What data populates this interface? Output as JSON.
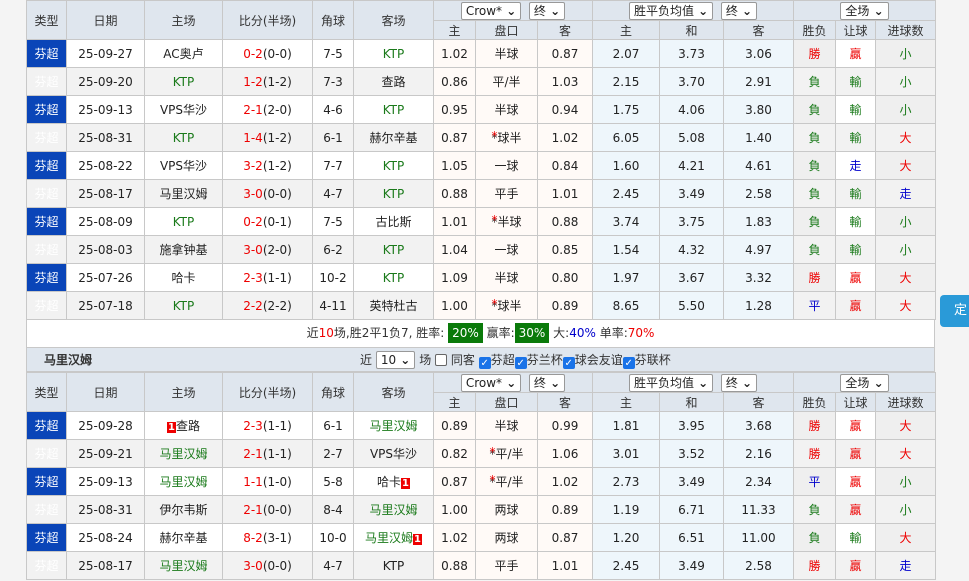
{
  "headers": {
    "type": "类型",
    "date": "日期",
    "home": "主场",
    "score": "比分(半场)",
    "corner": "角球",
    "away": "客场",
    "o_home": "主",
    "handicap": "盘口",
    "o_away": "客",
    "e_home": "主",
    "e_draw": "和",
    "e_away": "客",
    "wl": "胜负",
    "ah": "让球",
    "goals": "进球数"
  },
  "selects": {
    "company": "Crow*",
    "final1": "终",
    "avg": "胜平负均值",
    "final2": "终",
    "scope": "全场"
  },
  "colors": {
    "type_bg": "#0a45b8",
    "focus_team": "#1a7a1a",
    "win": "#e00",
    "lose": "#1a7a1a",
    "draw": "#00c"
  },
  "table1": {
    "focus": "KTP",
    "rows": [
      [
        "芬超",
        "25-09-27",
        "AC奥卢",
        "KTP",
        "0-2",
        "(0-0)",
        "7-5",
        "1.02",
        "半球",
        "0.87",
        "2.07",
        "3.73",
        "3.06",
        "勝",
        "贏",
        "小"
      ],
      [
        "芬超",
        "25-09-20",
        "KTP",
        "查路",
        "1-2",
        "(1-2)",
        "7-3",
        "0.86",
        "平/半",
        "1.03",
        "2.15",
        "3.70",
        "2.91",
        "負",
        "輸",
        "小"
      ],
      [
        "芬超",
        "25-09-13",
        "VPS华沙",
        "KTP",
        "2-1",
        "(2-0)",
        "4-6",
        "0.95",
        "半球",
        "0.94",
        "1.75",
        "4.06",
        "3.80",
        "負",
        "輸",
        "小"
      ],
      [
        "芬超",
        "25-08-31",
        "KTP",
        "赫尔辛基",
        "1-4",
        "(1-2)",
        "6-1",
        "0.87",
        "*球半",
        "1.02",
        "6.05",
        "5.08",
        "1.40",
        "負",
        "輸",
        "大"
      ],
      [
        "芬超",
        "25-08-22",
        "VPS华沙",
        "KTP",
        "3-2",
        "(1-2)",
        "7-7",
        "1.05",
        "一球",
        "0.84",
        "1.60",
        "4.21",
        "4.61",
        "負",
        "走",
        "大"
      ],
      [
        "芬超",
        "25-08-17",
        "马里汉姆",
        "KTP",
        "3-0",
        "(0-0)",
        "4-7",
        "0.88",
        "平手",
        "1.01",
        "2.45",
        "3.49",
        "2.58",
        "負",
        "輸",
        "走"
      ],
      [
        "芬超",
        "25-08-09",
        "KTP",
        "古比斯",
        "0-2",
        "(0-1)",
        "7-5",
        "1.01",
        "*半球",
        "0.88",
        "3.74",
        "3.75",
        "1.83",
        "負",
        "輸",
        "小"
      ],
      [
        "芬超",
        "25-08-03",
        "施拿钟基",
        "KTP",
        "3-0",
        "(2-0)",
        "6-2",
        "1.04",
        "一球",
        "0.85",
        "1.54",
        "4.32",
        "4.97",
        "負",
        "輸",
        "小"
      ],
      [
        "芬超",
        "25-07-26",
        "哈卡",
        "KTP",
        "2-3",
        "(1-1)",
        "10-2",
        "1.09",
        "半球",
        "0.80",
        "1.97",
        "3.67",
        "3.32",
        "勝",
        "贏",
        "大"
      ],
      [
        "芬超",
        "25-07-18",
        "KTP",
        "英特杜古",
        "2-2",
        "(2-2)",
        "4-11",
        "1.00",
        "*球半",
        "0.89",
        "8.65",
        "5.50",
        "1.28",
        "平",
        "贏",
        "大"
      ]
    ]
  },
  "summary": {
    "p1": "近",
    "n": "10",
    "p2": "场,胜2平1负7, 胜率:",
    "win_rate": "20%",
    "p3": "赢率:",
    "ah_rate": "30%",
    "p4": "大:",
    "big": "40%",
    "p5": "单率:",
    "odd": "70%"
  },
  "section2": {
    "title": "马里汉姆",
    "near": "近",
    "count": "10",
    "unit": "场",
    "same": "同客",
    "filters": [
      "芬超",
      "芬兰杯",
      "球会友谊",
      "芬联杯"
    ]
  },
  "table2": {
    "focus": "马里汉姆",
    "rows": [
      [
        "芬超",
        "25-09-28",
        "查路",
        "马里汉姆",
        "2-3",
        "(1-1)",
        "6-1",
        "0.89",
        "半球",
        "0.99",
        "1.81",
        "3.95",
        "3.68",
        "勝",
        "贏",
        "大",
        "h1"
      ],
      [
        "芬超",
        "25-09-21",
        "马里汉姆",
        "VPS华沙",
        "2-1",
        "(1-1)",
        "2-7",
        "0.82",
        "*平/半",
        "1.06",
        "3.01",
        "3.52",
        "2.16",
        "勝",
        "贏",
        "大",
        ""
      ],
      [
        "芬超",
        "25-09-13",
        "马里汉姆",
        "哈卡",
        "1-1",
        "(1-0)",
        "5-8",
        "0.87",
        "*平/半",
        "1.02",
        "2.73",
        "3.49",
        "2.34",
        "平",
        "贏",
        "小",
        "a1"
      ],
      [
        "芬超",
        "25-08-31",
        "伊尔韦斯",
        "马里汉姆",
        "2-1",
        "(0-0)",
        "8-4",
        "1.00",
        "两球",
        "0.89",
        "1.19",
        "6.71",
        "11.33",
        "負",
        "贏",
        "小",
        ""
      ],
      [
        "芬超",
        "25-08-24",
        "赫尔辛基",
        "马里汉姆",
        "8-2",
        "(3-1)",
        "10-0",
        "1.02",
        "两球",
        "0.87",
        "1.20",
        "6.51",
        "11.00",
        "負",
        "輸",
        "大",
        "a1"
      ],
      [
        "芬超",
        "25-08-17",
        "马里汉姆",
        "KTP",
        "3-0",
        "(0-0)",
        "4-7",
        "0.88",
        "平手",
        "1.01",
        "2.45",
        "3.49",
        "2.58",
        "勝",
        "贏",
        "走",
        ""
      ]
    ]
  },
  "side_button": "定"
}
